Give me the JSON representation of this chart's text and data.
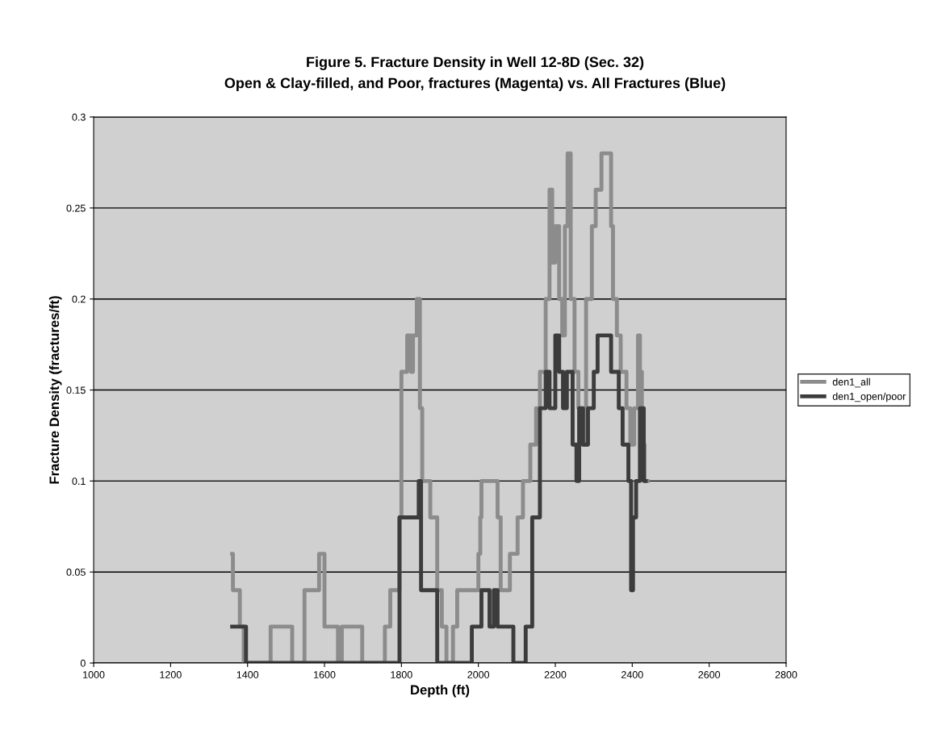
{
  "chart_data": {
    "type": "step",
    "title": "Figure 5. Fracture Density in Well 12-8D (Sec. 32)",
    "subtitle": "Open & Clay-filled, and Poor, fractures (Magenta) vs. All Fractures (Blue)",
    "xlabel": "Depth (ft)",
    "ylabel": "Fracture Density (fractures/ft)",
    "xlim": [
      1000,
      2800
    ],
    "xticks": [
      1000,
      1200,
      1400,
      1600,
      1800,
      2000,
      2200,
      2400,
      2600,
      2800
    ],
    "ylim": [
      0,
      0.3
    ],
    "yticks": [
      0,
      0.05,
      0.1,
      0.15,
      0.2,
      0.25,
      0.3
    ],
    "grid": "y",
    "legend": "right",
    "marker": "none",
    "line_style": "solid",
    "series": [
      {
        "name": "den1_all",
        "color": "#8c8c8c",
        "x": [
          1360,
          1362,
          1380,
          1390,
          1460,
          1516,
          1548,
          1586,
          1600,
          1635,
          1645,
          1698,
          1757,
          1771,
          1795,
          1800,
          1815,
          1825,
          1830,
          1840,
          1848,
          1854,
          1875,
          1893,
          1905,
          1917,
          1934,
          1945,
          2000,
          2005,
          2008,
          2050,
          2058,
          2082,
          2102,
          2116,
          2135,
          2150,
          2160,
          2175,
          2185,
          2192,
          2200,
          2210,
          2218,
          2225,
          2232,
          2240,
          2250,
          2260,
          2270,
          2280,
          2295,
          2305,
          2320,
          2345,
          2350,
          2360,
          2370,
          2385,
          2395,
          2405,
          2415,
          2420,
          2425,
          2432,
          2440
        ],
        "values": [
          0.06,
          0.04,
          0.02,
          0,
          0.02,
          0,
          0.04,
          0.06,
          0.02,
          0,
          0.02,
          0,
          0.02,
          0.04,
          0.08,
          0.16,
          0.18,
          0.16,
          0.18,
          0.2,
          0.14,
          0.1,
          0.08,
          0.04,
          0.02,
          0,
          0.02,
          0.04,
          0.06,
          0.08,
          0.1,
          0.08,
          0.04,
          0.06,
          0.08,
          0.1,
          0.12,
          0.14,
          0.16,
          0.2,
          0.26,
          0.22,
          0.24,
          0.2,
          0.18,
          0.24,
          0.28,
          0.2,
          0.16,
          0.14,
          0.12,
          0.2,
          0.24,
          0.26,
          0.28,
          0.24,
          0.2,
          0.18,
          0.16,
          0.14,
          0.12,
          0.14,
          0.18,
          0.16,
          0.12,
          0.1,
          0.1
        ]
      },
      {
        "name": "den1_open/poor",
        "color": "#3c3c3c",
        "x": [
          1360,
          1396,
          1795,
          1845,
          1851,
          1893,
          1983,
          2008,
          2029,
          2040,
          2050,
          2091,
          2123,
          2140,
          2160,
          2175,
          2185,
          2200,
          2210,
          2220,
          2230,
          2245,
          2255,
          2262,
          2272,
          2285,
          2300,
          2310,
          2345,
          2365,
          2375,
          2390,
          2397,
          2402,
          2410,
          2420,
          2430,
          2435
        ],
        "values": [
          0.02,
          0,
          0.08,
          0.1,
          0.04,
          0,
          0.02,
          0.04,
          0.02,
          0.04,
          0.02,
          0,
          0.02,
          0.08,
          0.14,
          0.16,
          0.14,
          0.18,
          0.16,
          0.14,
          0.16,
          0.12,
          0.1,
          0.14,
          0.12,
          0.14,
          0.16,
          0.18,
          0.16,
          0.14,
          0.12,
          0.1,
          0.04,
          0.08,
          0.1,
          0.14,
          0.1,
          0.1
        ]
      }
    ]
  }
}
